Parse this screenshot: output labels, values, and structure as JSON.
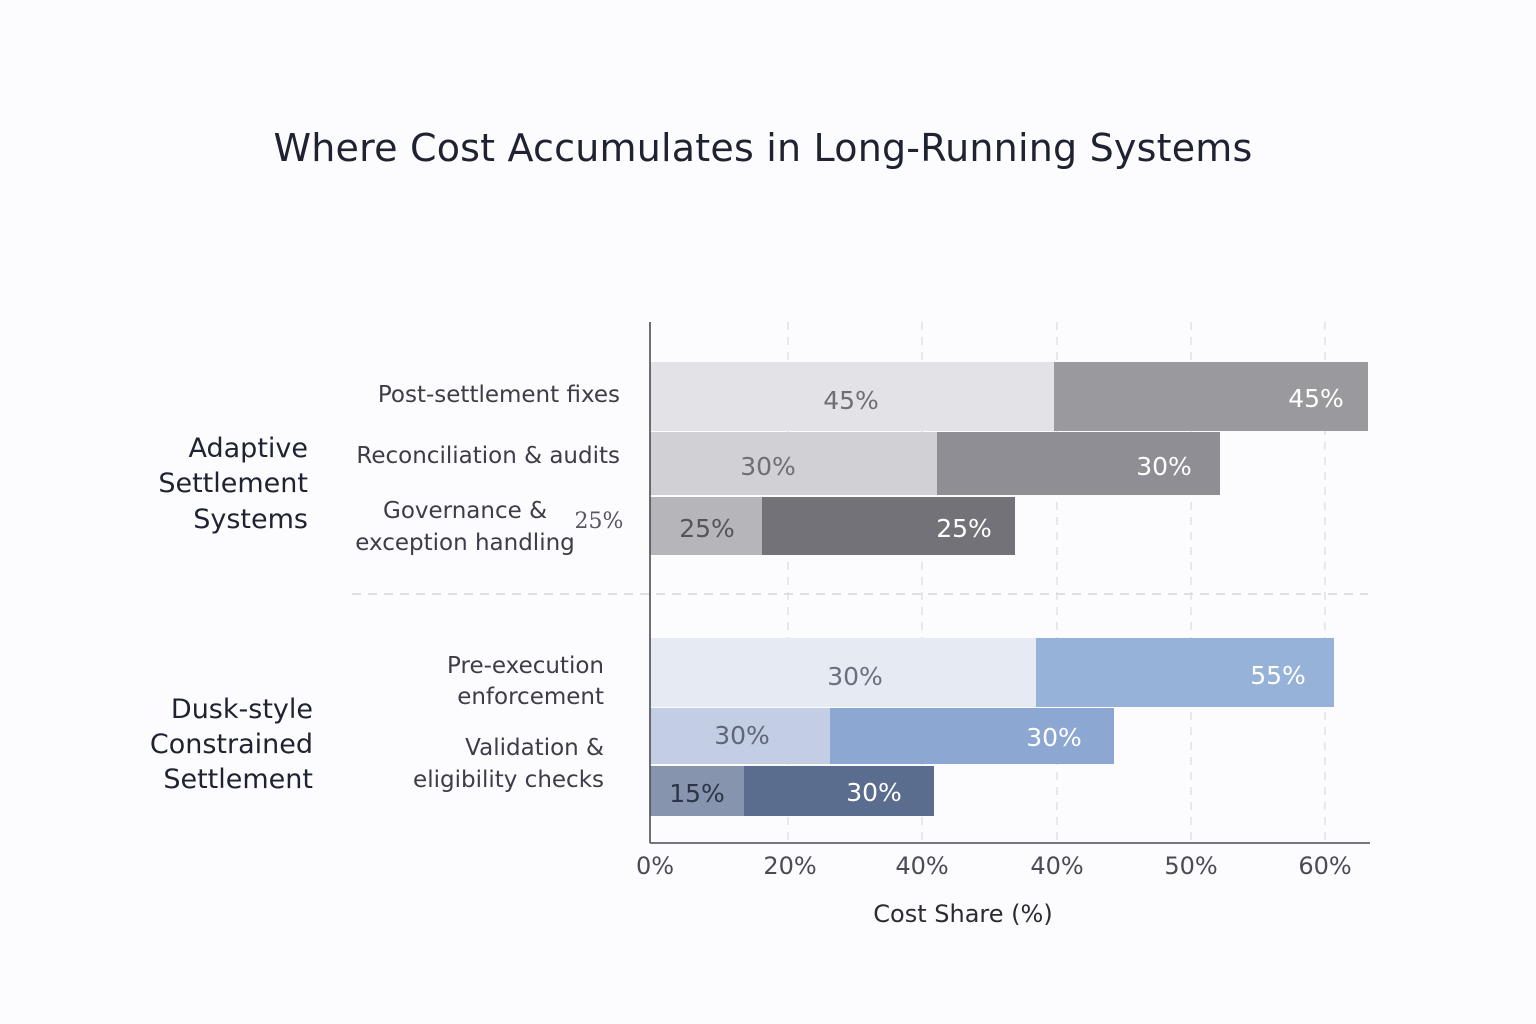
{
  "chart_data": {
    "type": "bar",
    "title": "Where Cost Accumulates in Long-Running Systems",
    "xlabel": "Cost Share (%)",
    "ylabel": "",
    "x_tick_labels": [
      "0%",
      "20%",
      "40%",
      "40%",
      "50%",
      "60%"
    ],
    "groups": [
      {
        "name": "Adaptive Settlement Systems",
        "name_lines": [
          "Adaptive",
          "Settlement",
          "Systems"
        ],
        "categories": [
          {
            "label_lines": [
              "Post-settlement fixes"
            ],
            "segments": [
              {
                "label": "45%",
                "color": "#e3e2e6"
              },
              {
                "label": "45%",
                "color": "#9a999e"
              }
            ]
          },
          {
            "label_lines": [
              "Reconciliation & audits"
            ],
            "segments": [
              {
                "label": "30%",
                "color": "#d1d0d5"
              },
              {
                "label": "30%",
                "color": "#8f8e94"
              }
            ]
          },
          {
            "label_lines": [
              "Governance &",
              "exception handling"
            ],
            "side_label": "25%",
            "segments": [
              {
                "label": "25%",
                "color": "#b6b5ba"
              },
              {
                "label": "25%",
                "color": "#737278"
              }
            ]
          }
        ]
      },
      {
        "name": "Dusk-style Constrained Settlement",
        "name_lines": [
          "Dusk-style",
          "Constrained",
          "Settlement"
        ],
        "categories": [
          {
            "label_lines": [
              "Pre-execution",
              "enforcement"
            ],
            "segments": [
              {
                "label": "30%",
                "color": "#e6eaf2"
              },
              {
                "label": "55%",
                "color": "#97b2d9"
              }
            ]
          },
          {
            "label_lines": [
              "Validation &",
              "eligibility checks"
            ],
            "segments": [
              {
                "label": "30%",
                "color": "#c3cde3"
              },
              {
                "label": "30%",
                "color": "#8ba7d2"
              }
            ]
          },
          {
            "label_lines": [],
            "segments": [
              {
                "label": "15%",
                "color": "#8794ae"
              },
              {
                "label": "30%",
                "color": "#5a6d8e"
              }
            ]
          }
        ]
      }
    ],
    "grid": true,
    "legend": "none"
  }
}
